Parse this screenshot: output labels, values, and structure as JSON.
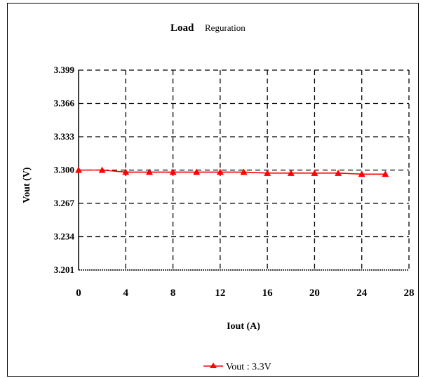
{
  "chart_data": {
    "type": "line",
    "title_main": "Load",
    "title_sub": "Reguration",
    "xlabel": "Iout (A)",
    "ylabel": "Vout (V)",
    "xlim": [
      0,
      28
    ],
    "ylim": [
      3.201,
      3.399
    ],
    "x_ticks": [
      "0",
      "4",
      "8",
      "12",
      "16",
      "20",
      "24",
      "28"
    ],
    "y_ticks": [
      "3.201",
      "3.234",
      "3.267",
      "3.300",
      "3.333",
      "3.366",
      "3.399"
    ],
    "grid": "dashed",
    "legend_position": "bottom-center",
    "series": [
      {
        "name": "Vout : 3.3V",
        "color": "#ff0000",
        "marker": "triangle",
        "x": [
          0,
          2,
          4,
          6,
          8,
          10,
          12,
          14,
          16,
          18,
          20,
          22,
          24,
          26
        ],
        "y": [
          3.3,
          3.3,
          3.298,
          3.298,
          3.298,
          3.298,
          3.298,
          3.298,
          3.297,
          3.297,
          3.297,
          3.297,
          3.296,
          3.296
        ]
      }
    ]
  }
}
